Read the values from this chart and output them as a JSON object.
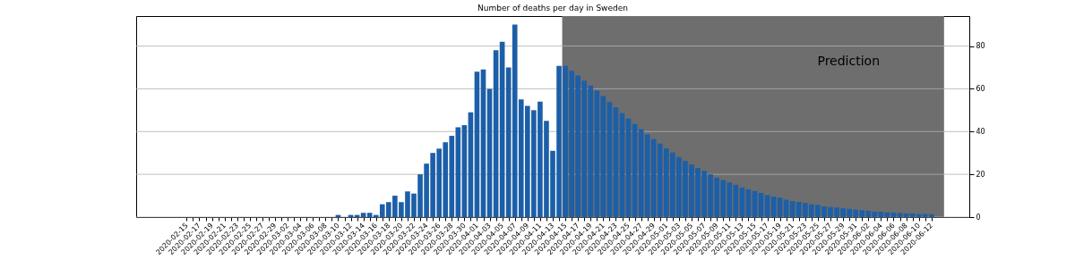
{
  "chart_data": {
    "type": "bar",
    "title": "Number of deaths per day in Sweden",
    "x": [
      "2020-02-15",
      "2020-02-16",
      "2020-02-17",
      "2020-02-18",
      "2020-02-19",
      "2020-02-20",
      "2020-02-21",
      "2020-02-22",
      "2020-02-23",
      "2020-02-24",
      "2020-02-25",
      "2020-02-26",
      "2020-02-27",
      "2020-02-28",
      "2020-02-29",
      "2020-03-01",
      "2020-03-02",
      "2020-03-03",
      "2020-03-04",
      "2020-03-05",
      "2020-03-06",
      "2020-03-07",
      "2020-03-08",
      "2020-03-09",
      "2020-03-10",
      "2020-03-11",
      "2020-03-12",
      "2020-03-13",
      "2020-03-14",
      "2020-03-15",
      "2020-03-16",
      "2020-03-17",
      "2020-03-18",
      "2020-03-19",
      "2020-03-20",
      "2020-03-21",
      "2020-03-22",
      "2020-03-23",
      "2020-03-24",
      "2020-03-25",
      "2020-03-26",
      "2020-03-27",
      "2020-03-28",
      "2020-03-29",
      "2020-03-30",
      "2020-03-31",
      "2020-04-01",
      "2020-04-02",
      "2020-04-03",
      "2020-04-04",
      "2020-04-05",
      "2020-04-06",
      "2020-04-07",
      "2020-04-08",
      "2020-04-09",
      "2020-04-10",
      "2020-04-11",
      "2020-04-12",
      "2020-04-13",
      "2020-04-14",
      "2020-04-15",
      "2020-04-16",
      "2020-04-17",
      "2020-04-18",
      "2020-04-19",
      "2020-04-20",
      "2020-04-21",
      "2020-04-22",
      "2020-04-23",
      "2020-04-24",
      "2020-04-25",
      "2020-04-26",
      "2020-04-27",
      "2020-04-28",
      "2020-04-29",
      "2020-04-30",
      "2020-05-01",
      "2020-05-02",
      "2020-05-03",
      "2020-05-04",
      "2020-05-05",
      "2020-05-06",
      "2020-05-07",
      "2020-05-08",
      "2020-05-09",
      "2020-05-10",
      "2020-05-11",
      "2020-05-12",
      "2020-05-13",
      "2020-05-14",
      "2020-05-15",
      "2020-05-16",
      "2020-05-17",
      "2020-05-18",
      "2020-05-19",
      "2020-05-20",
      "2020-05-21",
      "2020-05-22",
      "2020-05-23",
      "2020-05-24",
      "2020-05-25",
      "2020-05-26",
      "2020-05-27",
      "2020-05-28",
      "2020-05-29",
      "2020-05-30",
      "2020-05-31",
      "2020-06-01",
      "2020-06-02",
      "2020-06-03",
      "2020-06-04",
      "2020-06-05",
      "2020-06-06",
      "2020-06-07",
      "2020-06-08",
      "2020-06-09",
      "2020-06-10",
      "2020-06-11",
      "2020-06-12"
    ],
    "series": [
      {
        "color": "#1c5fa8",
        "values": [
          0,
          0,
          0,
          0,
          0,
          0,
          0,
          0,
          0,
          0,
          0,
          0,
          0,
          0,
          0,
          0,
          0,
          0,
          0,
          0,
          0,
          0,
          0,
          0,
          1,
          0,
          1,
          1,
          2,
          2,
          1,
          6,
          7,
          10,
          7,
          12,
          11,
          20,
          25,
          30,
          32,
          35,
          38,
          42,
          43,
          49,
          68,
          69,
          60,
          78,
          82,
          70,
          90,
          55,
          52,
          50,
          54,
          45,
          31,
          70.7,
          70.7,
          68.4,
          66.2,
          63.8,
          61.5,
          59.1,
          56.6,
          53.8,
          51.3,
          48.6,
          46.1,
          43.6,
          41.1,
          38.7,
          36.5,
          34.4,
          32.1,
          30.2,
          28.1,
          26.3,
          24.6,
          23.0,
          21.6,
          20.0,
          18.4,
          17.3,
          16.2,
          15.1,
          13.8,
          13.0,
          12.2,
          11.3,
          10.3,
          9.6,
          9.1,
          8.1,
          7.5,
          7.1,
          6.6,
          6.0,
          5.7,
          5.0,
          4.7,
          4.5,
          4.1,
          3.8,
          3.5,
          3.2,
          2.9,
          2.5,
          2.5,
          2.2,
          2.1,
          2.0,
          1.7,
          1.7,
          1.4,
          1.4,
          1.4
        ]
      }
    ],
    "xlim": [
      "2020-02-07",
      "2020-06-18"
    ],
    "xticks": [
      "2020-02-15",
      {
        "value": "2020-02-16",
        "label": null
      },
      "2020-02-17",
      {
        "value": "2020-02-18",
        "label": null
      },
      "2020-02-19",
      {
        "value": "2020-02-20",
        "label": null
      },
      "2020-02-21",
      {
        "value": "2020-02-22",
        "label": null
      },
      "2020-02-23",
      {
        "value": "2020-02-24",
        "label": null
      },
      "2020-02-25",
      {
        "value": "2020-02-26",
        "label": null
      },
      "2020-02-27",
      {
        "value": "2020-02-28",
        "label": null
      },
      "2020-02-29",
      {
        "value": "2020-03-01",
        "label": null
      },
      "2020-03-02",
      {
        "value": "2020-03-03",
        "label": null
      },
      "2020-03-04",
      {
        "value": "2020-03-05",
        "label": null
      },
      "2020-03-06",
      {
        "value": "2020-03-07",
        "label": null
      },
      "2020-03-08",
      {
        "value": "2020-03-09",
        "label": null
      },
      "2020-03-10",
      {
        "value": "2020-03-11",
        "label": null
      },
      "2020-03-12",
      {
        "value": "2020-03-13",
        "label": null
      },
      "2020-03-14",
      {
        "value": "2020-03-15",
        "label": null
      },
      "2020-03-16",
      {
        "value": "2020-03-17",
        "label": null
      },
      "2020-03-18",
      {
        "value": "2020-03-19",
        "label": null
      },
      "2020-03-20",
      {
        "value": "2020-03-21",
        "label": null
      },
      "2020-03-22",
      {
        "value": "2020-03-23",
        "label": null
      },
      "2020-03-24",
      {
        "value": "2020-03-25",
        "label": null
      },
      "2020-03-26",
      {
        "value": "2020-03-27",
        "label": null
      },
      "2020-03-28",
      {
        "value": "2020-03-29",
        "label": null
      },
      "2020-03-30",
      {
        "value": "2020-03-31",
        "label": null
      },
      "2020-04-01",
      {
        "value": "2020-04-02",
        "label": null
      },
      "2020-04-03",
      {
        "value": "2020-04-04",
        "label": null
      },
      "2020-04-05",
      {
        "value": "2020-04-06",
        "label": null
      },
      "2020-04-07",
      {
        "value": "2020-04-08",
        "label": null
      },
      "2020-04-09",
      {
        "value": "2020-04-10",
        "label": null
      },
      "2020-04-11",
      {
        "value": "2020-04-12",
        "label": null
      },
      "2020-04-13",
      {
        "value": "2020-04-14",
        "label": null
      },
      "2020-04-15",
      {
        "value": "2020-04-16",
        "label": null
      },
      "2020-04-17",
      {
        "value": "2020-04-18",
        "label": null
      },
      "2020-04-19",
      {
        "value": "2020-04-20",
        "label": null
      },
      "2020-04-21",
      {
        "value": "2020-04-22",
        "label": null
      },
      "2020-04-23",
      {
        "value": "2020-04-24",
        "label": null
      },
      "2020-04-25",
      {
        "value": "2020-04-26",
        "label": null
      },
      "2020-04-27",
      {
        "value": "2020-04-28",
        "label": null
      },
      "2020-04-29",
      {
        "value": "2020-04-30",
        "label": null
      },
      "2020-05-01",
      {
        "value": "2020-05-02",
        "label": null
      },
      "2020-05-03",
      {
        "value": "2020-05-04",
        "label": null
      },
      "2020-05-05",
      {
        "value": "2020-05-06",
        "label": null
      },
      "2020-05-07",
      {
        "value": "2020-05-08",
        "label": null
      },
      "2020-05-09",
      {
        "value": "2020-05-10",
        "label": null
      },
      "2020-05-11",
      {
        "value": "2020-05-12",
        "label": null
      },
      "2020-05-13",
      {
        "value": "2020-05-14",
        "label": null
      },
      "2020-05-15",
      {
        "value": "2020-05-16",
        "label": null
      },
      "2020-05-17",
      {
        "value": "2020-05-18",
        "label": null
      },
      "2020-05-19",
      {
        "value": "2020-05-20",
        "label": null
      },
      "2020-05-21",
      {
        "value": "2020-05-22",
        "label": null
      },
      "2020-05-23",
      {
        "value": "2020-05-24",
        "label": null
      },
      "2020-05-25",
      {
        "value": "2020-05-26",
        "label": null
      },
      "2020-05-27",
      {
        "value": "2020-05-28",
        "label": null
      },
      "2020-05-29",
      {
        "value": "2020-05-30",
        "label": null
      },
      "2020-05-31",
      {
        "value": "2020-06-01",
        "label": null
      },
      "2020-06-02",
      {
        "value": "2020-06-03",
        "label": null
      },
      "2020-06-04",
      {
        "value": "2020-06-05",
        "label": null
      },
      "2020-06-06",
      {
        "value": "2020-06-07",
        "label": null
      },
      "2020-06-08",
      {
        "value": "2020-06-09",
        "label": null
      },
      "2020-06-10",
      {
        "value": "2020-06-11",
        "label": null
      },
      "2020-06-12"
    ],
    "ylim": [
      0,
      94
    ],
    "yticks": [
      0,
      20,
      40,
      60,
      80
    ],
    "grid": "y",
    "bands": [
      {
        "axis": "x",
        "from": "2020-04-14T12:00",
        "to": "2020-06-14",
        "label": "Prediction",
        "color": "#6e6e6e"
      }
    ]
  }
}
